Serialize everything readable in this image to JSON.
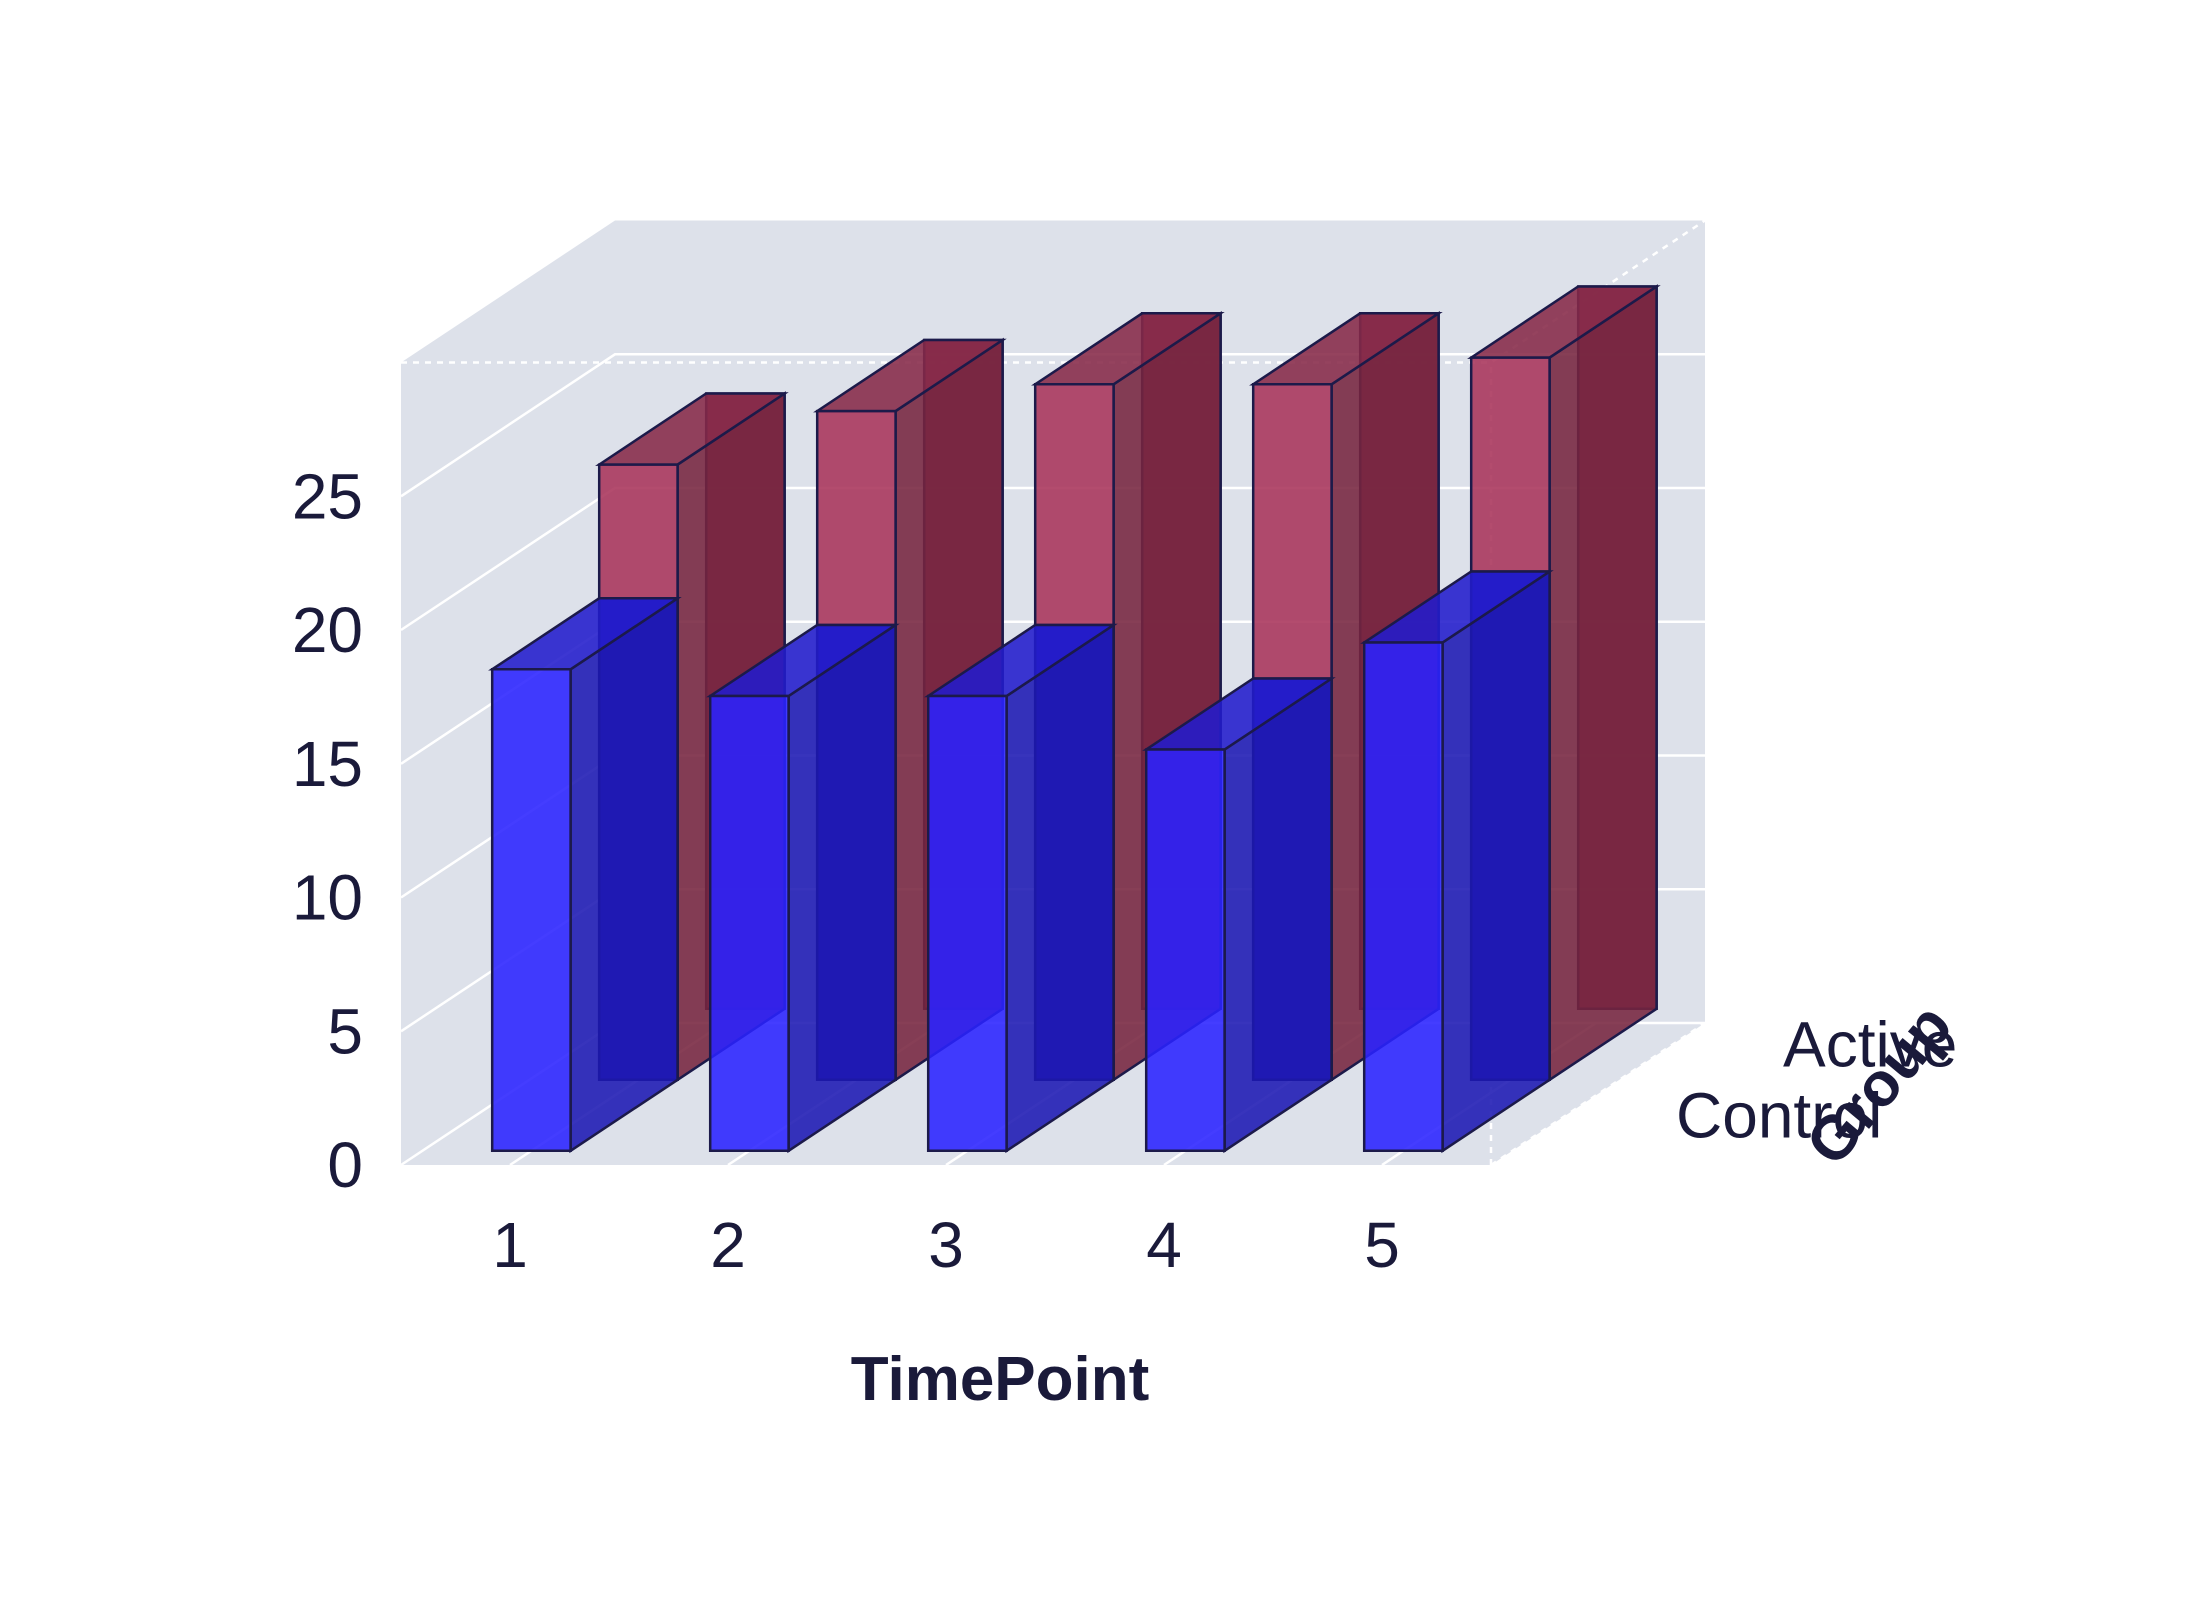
{
  "chart_data": {
    "type": "bar",
    "projection": "3d",
    "categories": [
      "1",
      "2",
      "3",
      "4",
      "5"
    ],
    "series": [
      {
        "name": "Control",
        "values": [
          18,
          17,
          17,
          15,
          19
        ],
        "color": "#2a22ff"
      },
      {
        "name": "Active",
        "values": [
          23,
          25,
          26,
          26,
          27
        ],
        "color": "#a8335a"
      }
    ],
    "xlabel": "TimePoint",
    "zlabel": "Group",
    "ylabel": "",
    "z_ticks": [
      "Control",
      "Active"
    ],
    "y_ticks": [
      "0",
      "5",
      "10",
      "15",
      "20",
      "25"
    ],
    "ylim": [
      0,
      30
    ],
    "grid": true,
    "colors": {
      "pane": "#dde1ea",
      "grid": "#ffffff",
      "edge": "#1c1a4a",
      "text": "#1a1a3a"
    }
  }
}
